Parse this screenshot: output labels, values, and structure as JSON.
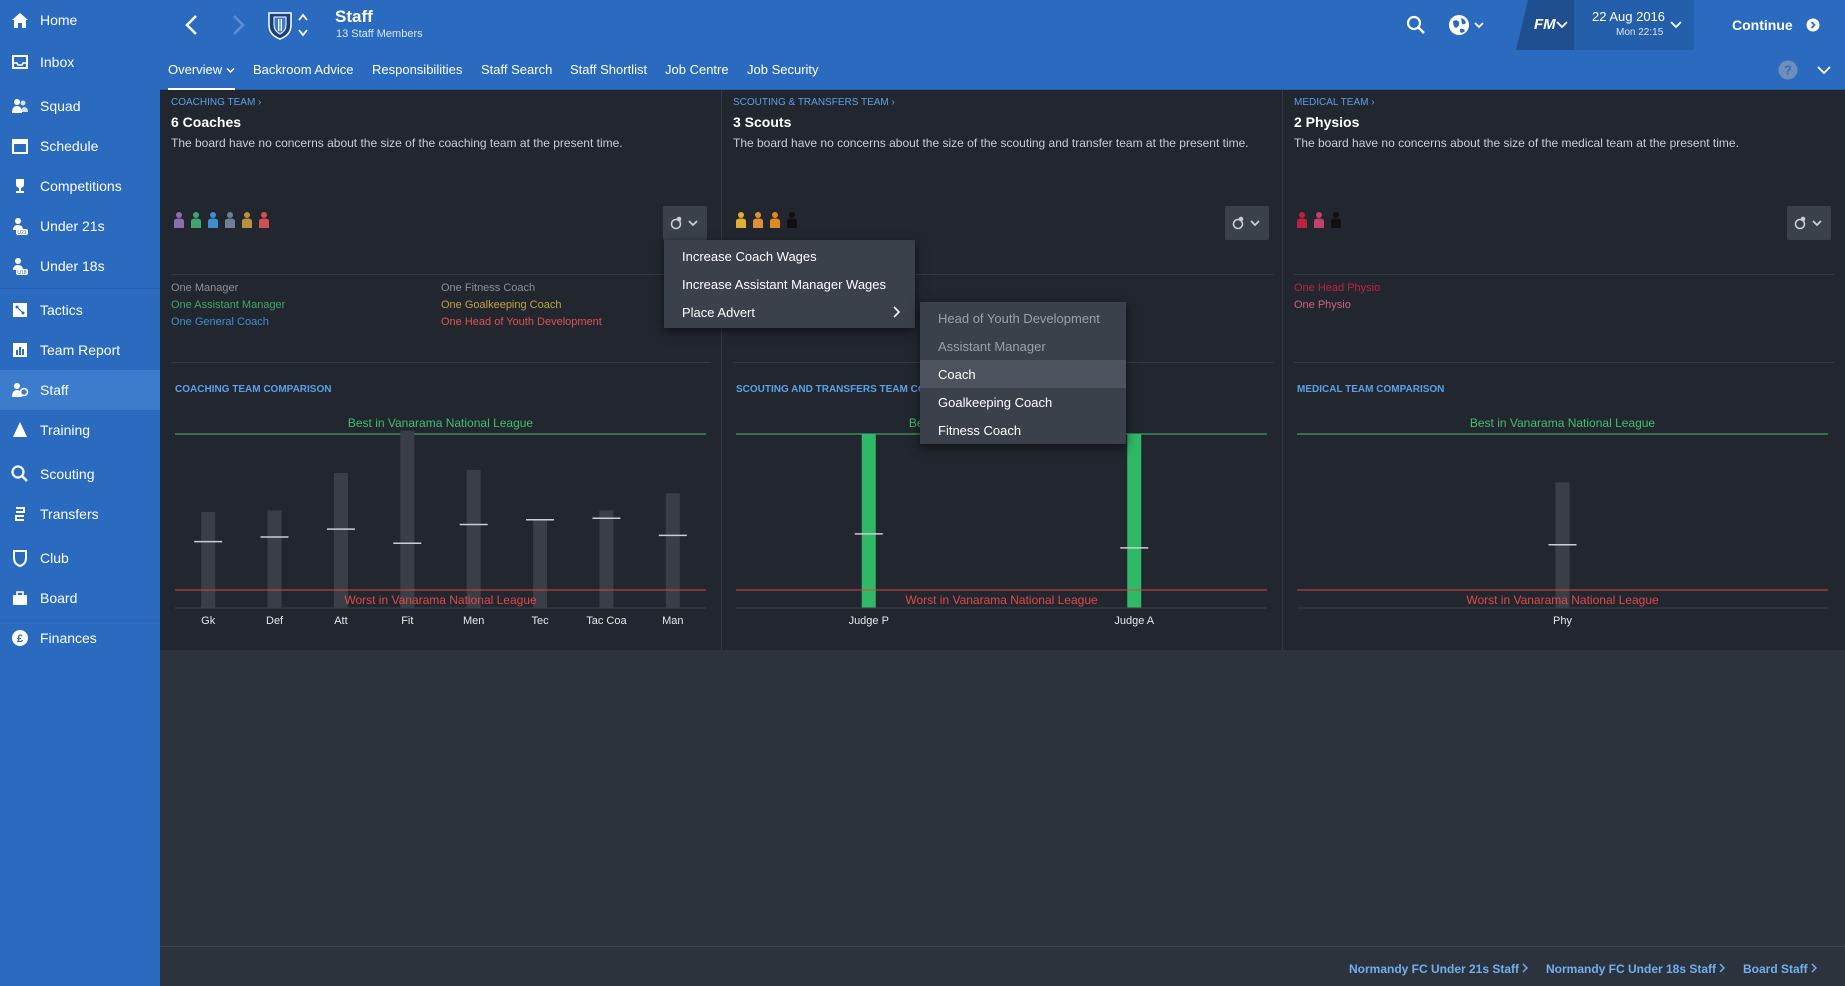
{
  "sidebar": {
    "items": [
      {
        "label": "Home",
        "icon": "home-icon"
      },
      {
        "label": "Inbox",
        "icon": "inbox-icon"
      },
      {
        "label": "Squad",
        "icon": "squad-icon"
      },
      {
        "label": "Schedule",
        "icon": "schedule-icon"
      },
      {
        "label": "Competitions",
        "icon": "trophy-icon"
      },
      {
        "label": "Under 21s",
        "icon": "under21-icon"
      },
      {
        "label": "Under 18s",
        "icon": "under18-icon"
      },
      {
        "label": "Tactics",
        "icon": "tactics-icon"
      },
      {
        "label": "Team Report",
        "icon": "team-report-icon"
      },
      {
        "label": "Staff",
        "icon": "staff-icon"
      },
      {
        "label": "Training",
        "icon": "training-icon"
      },
      {
        "label": "Scouting",
        "icon": "scouting-icon"
      },
      {
        "label": "Transfers",
        "icon": "transfers-icon"
      },
      {
        "label": "Club",
        "icon": "club-icon"
      },
      {
        "label": "Board",
        "icon": "board-icon"
      },
      {
        "label": "Finances",
        "icon": "finances-icon"
      }
    ]
  },
  "header": {
    "title": "Staff",
    "subtitle": "13 Staff Members",
    "date": "22 Aug 2016",
    "time": "Mon 22:15",
    "fm_label": "FM",
    "continue_label": "Continue"
  },
  "tabs": [
    "Overview",
    "Backroom Advice",
    "Responsibilities",
    "Staff Search",
    "Staff Shortlist",
    "Job Centre",
    "Job Security"
  ],
  "help_label": "?",
  "coaching": {
    "link": "Coaching Team",
    "title": "6 Coaches",
    "desc": "The board have no concerns about the size of the coaching team at the present time.",
    "people_colors": [
      "#8a6fb0",
      "#3fa66a",
      "#3f8fd0",
      "#6f7f93",
      "#b8923a",
      "#d05050"
    ],
    "roles_left": [
      {
        "text": "One Manager",
        "color": "#8a8f98"
      },
      {
        "text": "One Assistant Manager",
        "color": "#3fa66a"
      },
      {
        "text": "One General Coach",
        "color": "#3f8fd0"
      }
    ],
    "roles_right": [
      {
        "text": "One Fitness Coach",
        "color": "#8a8f98"
      },
      {
        "text": "One Goalkeeping Coach",
        "color": "#c0a040"
      },
      {
        "text": "One Head of Youth Development",
        "color": "#e05050"
      }
    ],
    "comparison_title": "Coaching Team Comparison"
  },
  "scouting": {
    "link": "Scouting & Transfers Team",
    "title": "3 Scouts",
    "desc": "The board have no concerns about the size of the scouting and transfer team at the present time.",
    "people_colors": [
      "#e0b030",
      "#e09030",
      "#e08a20",
      "#111111"
    ],
    "comparison_title": "Scouting and Transfers Team Comparison"
  },
  "medical": {
    "link": "Medical Team",
    "title": "2 Physios",
    "desc": "The board have no concerns about the size of the medical team at the present time.",
    "people_colors": [
      "#c02040",
      "#c04070",
      "#111111"
    ],
    "roles": [
      {
        "text": "One Head Physio",
        "color": "#c02040"
      },
      {
        "text": "One Physio",
        "color": "#d06080"
      }
    ],
    "comparison_title": "Medical Team Comparison"
  },
  "chart_data": [
    {
      "type": "bar",
      "title": "Coaching Team Comparison",
      "best_label": "Best in Vanarama National League",
      "worst_label": "Worst in Vanarama National League",
      "categories": [
        "Gk",
        "Def",
        "Att",
        "Fit",
        "Men",
        "Tec",
        "Tac Coa",
        "Man"
      ],
      "values": [
        0.5,
        0.51,
        0.75,
        1.02,
        0.77,
        0.45,
        0.51,
        0.62
      ],
      "averages": [
        0.31,
        0.34,
        0.39,
        0.3,
        0.42,
        0.45,
        0.46,
        0.35
      ],
      "highlight": [
        false,
        false,
        false,
        false,
        false,
        false,
        false,
        false
      ],
      "ylim": [
        0,
        1
      ]
    },
    {
      "type": "bar",
      "title": "Scouting and Transfers Team Comparison",
      "best_label": "Best in Vanarama National League",
      "worst_label": "Worst in Vanarama National League",
      "categories": [
        "Judge P",
        "Judge A"
      ],
      "values": [
        1.0,
        1.0
      ],
      "averages": [
        0.36,
        0.27
      ],
      "highlight": [
        true,
        true
      ],
      "ylim": [
        0,
        1
      ]
    },
    {
      "type": "bar",
      "title": "Medical Team Comparison",
      "best_label": "Best in Vanarama National League",
      "worst_label": "Worst in Vanarama National League",
      "categories": [
        "Phy"
      ],
      "values": [
        0.69
      ],
      "averages": [
        0.29
      ],
      "highlight": [
        false
      ],
      "ylim": [
        0,
        1
      ]
    }
  ],
  "menu": {
    "items": [
      "Increase Coach Wages",
      "Increase Assistant Manager Wages",
      "Place Advert"
    ]
  },
  "submenu": {
    "items": [
      {
        "label": "Head of Youth Development",
        "disabled": true
      },
      {
        "label": "Assistant Manager",
        "disabled": true
      },
      {
        "label": "Coach",
        "disabled": false,
        "hover": true
      },
      {
        "label": "Goalkeeping Coach",
        "disabled": false
      },
      {
        "label": "Fitness Coach",
        "disabled": false
      }
    ]
  },
  "footer_links": [
    "Normandy FC Under 21s Staff",
    "Normandy FC Under 18s Staff",
    "Board Staff"
  ]
}
